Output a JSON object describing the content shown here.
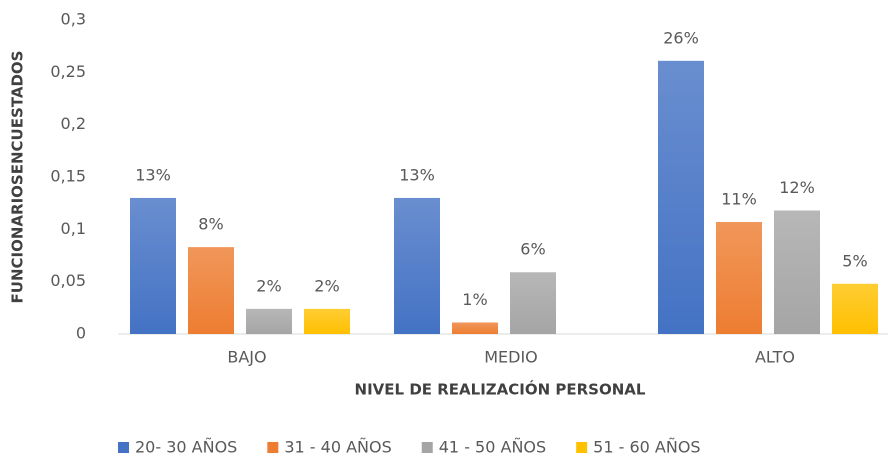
{
  "chart_data": {
    "type": "bar",
    "x_label": "NIVEL DE REALIZACIÓN PERSONAL",
    "y_label": "FUNCIONARIOSENCUESTADOS",
    "categories": [
      "BAJO",
      "MEDIO",
      "ALTO"
    ],
    "series": [
      {
        "name": "20- 30 AÑOS",
        "color": "#4472c4",
        "values": [
          0.13,
          0.13,
          0.261
        ],
        "value_labels": [
          "13%",
          "13%",
          "26%"
        ]
      },
      {
        "name": "31 - 40 AÑOS",
        "color": "#ed7d31",
        "values": [
          0.083,
          0.011,
          0.107
        ],
        "value_labels": [
          "8%",
          "1%",
          "11%"
        ]
      },
      {
        "name": "41 - 50 AÑOS",
        "color": "#a5a5a5",
        "values": [
          0.024,
          0.059,
          0.118
        ],
        "value_labels": [
          "2%",
          "6%",
          "12%"
        ]
      },
      {
        "name": "51 - 60 AÑOS",
        "color": "#ffc000",
        "values": [
          0.024,
          0,
          0.048
        ],
        "value_labels": [
          "2%",
          null,
          "5%"
        ]
      }
    ],
    "ylim": [
      0,
      0.3
    ],
    "yticks": [
      0,
      {
        "value": 0.05,
        "label": "0,05"
      },
      {
        "value": 0.1,
        "label": "0,1"
      },
      {
        "value": 0.15,
        "label": "0,15"
      },
      {
        "value": 0.2,
        "label": "0,2"
      },
      {
        "value": 0.25,
        "label": "0,25"
      },
      {
        "value": 0.3,
        "label": "0,3"
      }
    ],
    "legend": "bottom"
  }
}
